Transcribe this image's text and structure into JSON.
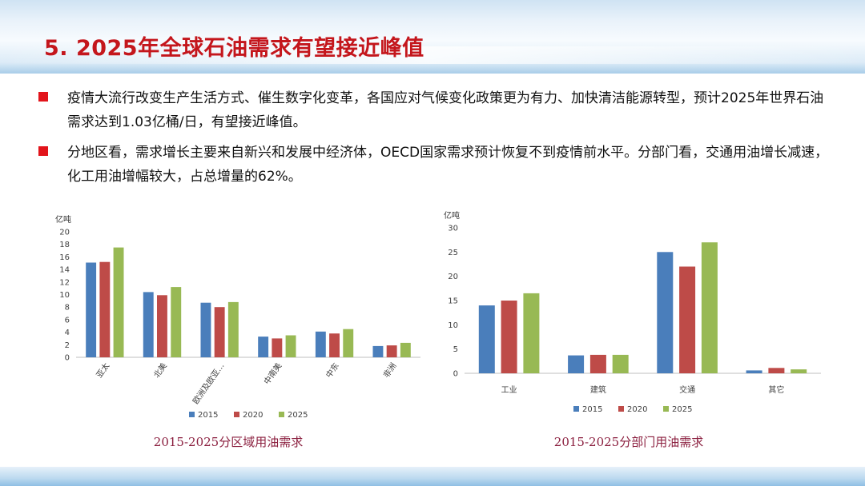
{
  "title": "5. 2025年全球石油需求有望接近峰值",
  "bullets": [
    "疫情大流行改变生产生活方式、催生数字化变革，各国应对气候变化政策更为有力、加快清洁能源转型，预计2025年世界石油需求达到1.03亿桶/日，有望接近峰值。",
    "分地区看，需求增长主要来自新兴和发展中经济体，OECD国家需求预计恢复不到疫情前水平。分部门看，交通用油增长减速，化工用油增幅较大，占总增量的62%。"
  ],
  "colors": {
    "title": "#c4161c",
    "bullet": "#e2141b",
    "caption": "#8b1f3f"
  },
  "chart_data": [
    {
      "type": "bar",
      "title": "2015-2025分区域用油需求",
      "ylabel": "亿吨",
      "ylim": [
        0,
        20
      ],
      "ytick_step": 2,
      "categories": [
        "亚太",
        "北美",
        "欧洲及欧亚",
        "中南美",
        "中东",
        "非洲"
      ],
      "category_labels": [
        "亚太",
        "北美",
        "欧洲及欧亚…",
        "中南美",
        "中东",
        "非洲"
      ],
      "series": [
        {
          "name": "2015",
          "color": "#4a7ebb",
          "values": [
            15.1,
            10.4,
            8.7,
            3.3,
            4.1,
            1.8
          ]
        },
        {
          "name": "2020",
          "color": "#be4b48",
          "values": [
            15.2,
            9.9,
            8.0,
            3.0,
            3.8,
            1.9
          ]
        },
        {
          "name": "2025",
          "color": "#98b954",
          "values": [
            17.5,
            11.2,
            8.8,
            3.5,
            4.5,
            2.3
          ]
        }
      ],
      "legend": "bottom",
      "grid": false
    },
    {
      "type": "bar",
      "title": "2015-2025分部门用油需求",
      "ylabel": "亿吨",
      "ylim": [
        0,
        30
      ],
      "ytick_step": 5,
      "categories": [
        "工业",
        "建筑",
        "交通",
        "其它"
      ],
      "series": [
        {
          "name": "2015",
          "color": "#4a7ebb",
          "values": [
            14.0,
            3.7,
            25.0,
            0.6
          ]
        },
        {
          "name": "2020",
          "color": "#be4b48",
          "values": [
            15.0,
            3.8,
            22.0,
            1.1
          ]
        },
        {
          "name": "2025",
          "color": "#98b954",
          "values": [
            16.5,
            3.8,
            27.0,
            0.8
          ]
        }
      ],
      "legend": "bottom",
      "grid": false
    }
  ]
}
